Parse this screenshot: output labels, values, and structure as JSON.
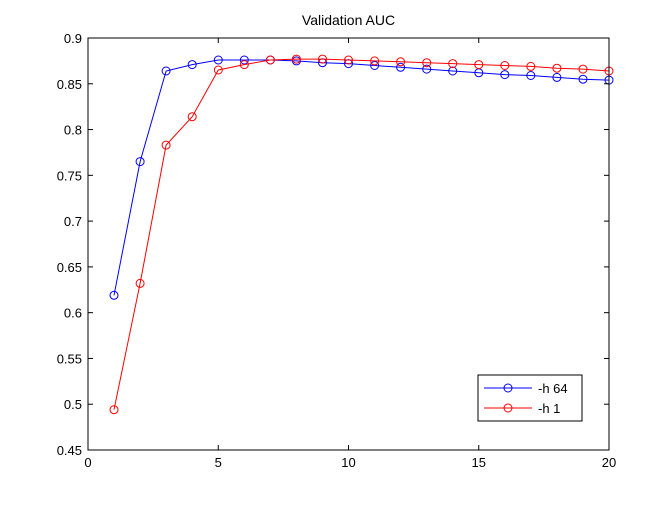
{
  "chart_data": {
    "type": "line",
    "title": "Validation AUC",
    "xlabel": "",
    "ylabel": "",
    "xlim": [
      0,
      20
    ],
    "ylim": [
      0.45,
      0.9
    ],
    "xticks": [
      0,
      5,
      10,
      15,
      20
    ],
    "xtick_labels": [
      "0",
      "5",
      "10",
      "15",
      "20"
    ],
    "yticks": [
      0.45,
      0.5,
      0.55,
      0.6,
      0.65,
      0.7,
      0.75,
      0.8,
      0.85,
      0.9
    ],
    "ytick_labels": [
      "0.45",
      "0.5",
      "0.55",
      "0.6",
      "0.65",
      "0.7",
      "0.75",
      "0.8",
      "0.85",
      "0.9"
    ],
    "grid": false,
    "legend_position": "bottom-right",
    "marker": "circle",
    "x": [
      1,
      2,
      3,
      4,
      5,
      6,
      7,
      8,
      9,
      10,
      11,
      12,
      13,
      14,
      15,
      16,
      17,
      18,
      19,
      20
    ],
    "series": [
      {
        "name": "-h 64",
        "color": "#0000ff",
        "values": [
          0.619,
          0.765,
          0.864,
          0.871,
          0.876,
          0.876,
          0.876,
          0.875,
          0.873,
          0.872,
          0.87,
          0.868,
          0.866,
          0.864,
          0.862,
          0.86,
          0.859,
          0.857,
          0.855,
          0.854
        ]
      },
      {
        "name": "-h 1",
        "color": "#ff0000",
        "values": [
          0.494,
          0.632,
          0.783,
          0.814,
          0.865,
          0.871,
          0.876,
          0.877,
          0.877,
          0.876,
          0.875,
          0.874,
          0.873,
          0.872,
          0.871,
          0.87,
          0.869,
          0.867,
          0.866,
          0.864
        ]
      }
    ]
  }
}
